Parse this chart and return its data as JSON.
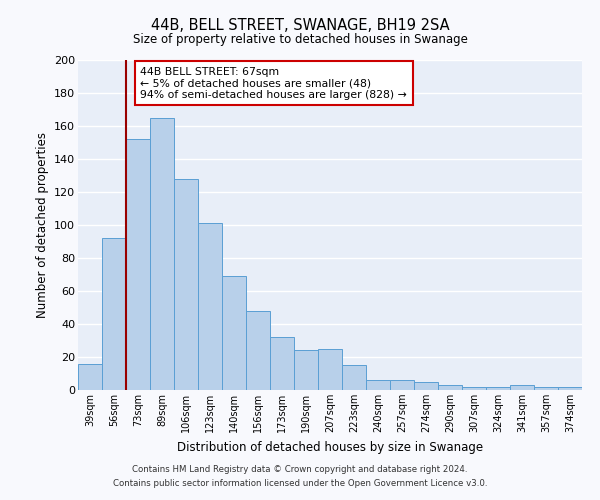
{
  "title": "44B, BELL STREET, SWANAGE, BH19 2SA",
  "subtitle": "Size of property relative to detached houses in Swanage",
  "xlabel": "Distribution of detached houses by size in Swanage",
  "ylabel": "Number of detached properties",
  "categories": [
    "39sqm",
    "56sqm",
    "73sqm",
    "89sqm",
    "106sqm",
    "123sqm",
    "140sqm",
    "156sqm",
    "173sqm",
    "190sqm",
    "207sqm",
    "223sqm",
    "240sqm",
    "257sqm",
    "274sqm",
    "290sqm",
    "307sqm",
    "324sqm",
    "341sqm",
    "357sqm",
    "374sqm"
  ],
  "values": [
    16,
    92,
    152,
    165,
    128,
    101,
    69,
    48,
    32,
    24,
    25,
    15,
    6,
    6,
    5,
    3,
    2,
    2,
    3,
    2,
    2
  ],
  "bar_color": "#b8d0ea",
  "bar_edge_color": "#5a9fd4",
  "fig_background_color": "#f8f9fd",
  "ax_background_color": "#e8eef8",
  "grid_color": "#ffffff",
  "ylim": [
    0,
    200
  ],
  "yticks": [
    0,
    20,
    40,
    60,
    80,
    100,
    120,
    140,
    160,
    180,
    200
  ],
  "vline_color": "#990000",
  "annotation_title": "44B BELL STREET: 67sqm",
  "annotation_line1": "← 5% of detached houses are smaller (48)",
  "annotation_line2": "94% of semi-detached houses are larger (828) →",
  "annotation_box_facecolor": "#ffffff",
  "annotation_box_edgecolor": "#cc0000",
  "footer_line1": "Contains HM Land Registry data © Crown copyright and database right 2024.",
  "footer_line2": "Contains public sector information licensed under the Open Government Licence v3.0."
}
